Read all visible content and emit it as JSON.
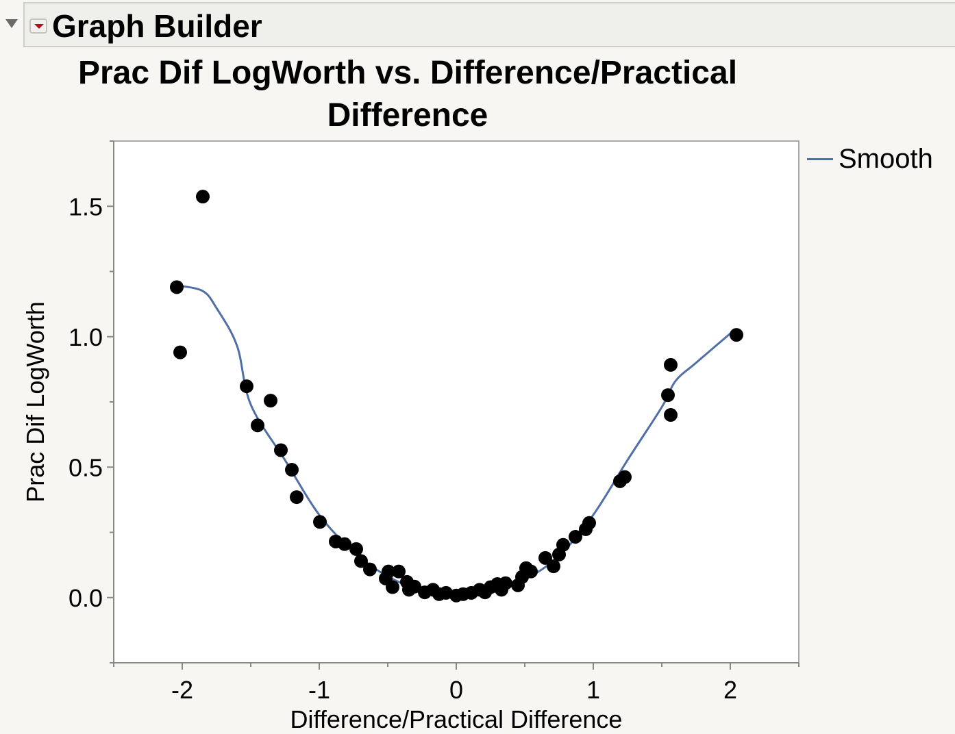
{
  "header": {
    "title": "Graph Builder"
  },
  "chart_data": {
    "type": "scatter",
    "title": "Prac Dif LogWorth vs. Difference/Practical Difference",
    "xlabel": "Difference/Practical Difference",
    "ylabel": "Prac Dif LogWorth",
    "xlim": [
      -2.5,
      2.5
    ],
    "ylim": [
      -0.25,
      1.75
    ],
    "xticks": [
      "-2",
      "-1",
      "0",
      "1",
      "2"
    ],
    "yticks": [
      "0.0",
      "0.5",
      "1.0",
      "1.5"
    ],
    "grid": false,
    "legend": {
      "position": "right",
      "entries": [
        "Smooth"
      ]
    },
    "colors": {
      "points": "#000000",
      "smooth": "#4f6fa6"
    },
    "points": [
      [
        -1.85,
        1.537
      ],
      [
        -2.04,
        1.19
      ],
      [
        -2.015,
        0.94
      ],
      [
        -1.53,
        0.81
      ],
      [
        -1.355,
        0.755
      ],
      [
        -1.45,
        0.66
      ],
      [
        -1.28,
        0.565
      ],
      [
        -1.2,
        0.49
      ],
      [
        -1.165,
        0.385
      ],
      [
        -0.995,
        0.29
      ],
      [
        -0.88,
        0.215
      ],
      [
        -0.815,
        0.205
      ],
      [
        -0.73,
        0.186
      ],
      [
        -0.695,
        0.14
      ],
      [
        -0.63,
        0.108
      ],
      [
        -0.515,
        0.073
      ],
      [
        -0.495,
        0.1
      ],
      [
        -0.42,
        0.1
      ],
      [
        -0.465,
        0.04
      ],
      [
        -0.36,
        0.06
      ],
      [
        -0.345,
        0.03
      ],
      [
        -0.305,
        0.042
      ],
      [
        -0.23,
        0.02
      ],
      [
        -0.17,
        0.03
      ],
      [
        -0.125,
        0.013
      ],
      [
        -0.075,
        0.018
      ],
      [
        0,
        0.008
      ],
      [
        0.05,
        0.013
      ],
      [
        0.11,
        0.018
      ],
      [
        0.17,
        0.03
      ],
      [
        0.21,
        0.02
      ],
      [
        0.25,
        0.04
      ],
      [
        0.3,
        0.052
      ],
      [
        0.33,
        0.03
      ],
      [
        0.36,
        0.055
      ],
      [
        0.45,
        0.047
      ],
      [
        0.48,
        0.079
      ],
      [
        0.51,
        0.113
      ],
      [
        0.545,
        0.1
      ],
      [
        0.65,
        0.152
      ],
      [
        0.71,
        0.12
      ],
      [
        0.75,
        0.165
      ],
      [
        0.78,
        0.202
      ],
      [
        0.87,
        0.233
      ],
      [
        0.945,
        0.262
      ],
      [
        0.97,
        0.286
      ],
      [
        1.195,
        0.446
      ],
      [
        1.23,
        0.462
      ],
      [
        1.545,
        0.776
      ],
      [
        1.565,
        0.892
      ],
      [
        1.565,
        0.7
      ],
      [
        2.045,
        1.007
      ]
    ],
    "smooth": [
      [
        -2.03,
        1.196
      ],
      [
        -1.85,
        1.175
      ],
      [
        -1.75,
        1.11
      ],
      [
        -1.6,
        0.965
      ],
      [
        -1.5,
        0.74
      ],
      [
        -1.25,
        0.527
      ],
      [
        -1.0,
        0.317
      ],
      [
        -0.75,
        0.176
      ],
      [
        -0.5,
        0.081
      ],
      [
        -0.25,
        0.029
      ],
      [
        0,
        0.013
      ],
      [
        0.25,
        0.029
      ],
      [
        0.5,
        0.07
      ],
      [
        0.75,
        0.16
      ],
      [
        1.0,
        0.317
      ],
      [
        1.25,
        0.527
      ],
      [
        1.5,
        0.73
      ],
      [
        1.6,
        0.83
      ],
      [
        1.75,
        0.9
      ],
      [
        2.04,
        1.03
      ]
    ]
  }
}
